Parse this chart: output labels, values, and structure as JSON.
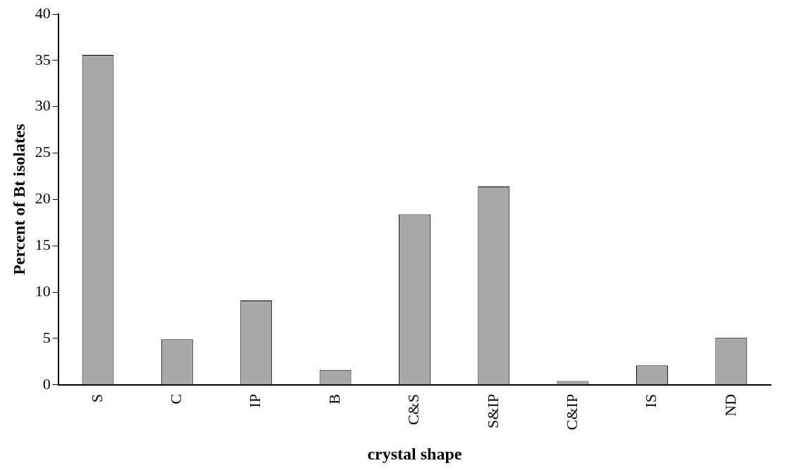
{
  "chart_data": {
    "type": "bar",
    "xlabel": "crystal shape",
    "ylabel": "Percent of Bt isolates",
    "categories": [
      "S",
      "C",
      "IP",
      "B",
      "C&S",
      "S&IP",
      "C&IP",
      "IS",
      "ND"
    ],
    "values": [
      35.6,
      4.9,
      9.1,
      1.6,
      18.4,
      21.4,
      0.4,
      2.1,
      5.1
    ],
    "color": "#a8a8a8",
    "ylim": [
      0,
      40
    ],
    "yticks": [
      0,
      5,
      10,
      15,
      20,
      25,
      30,
      35,
      40
    ],
    "grid": false,
    "legend": false
  }
}
